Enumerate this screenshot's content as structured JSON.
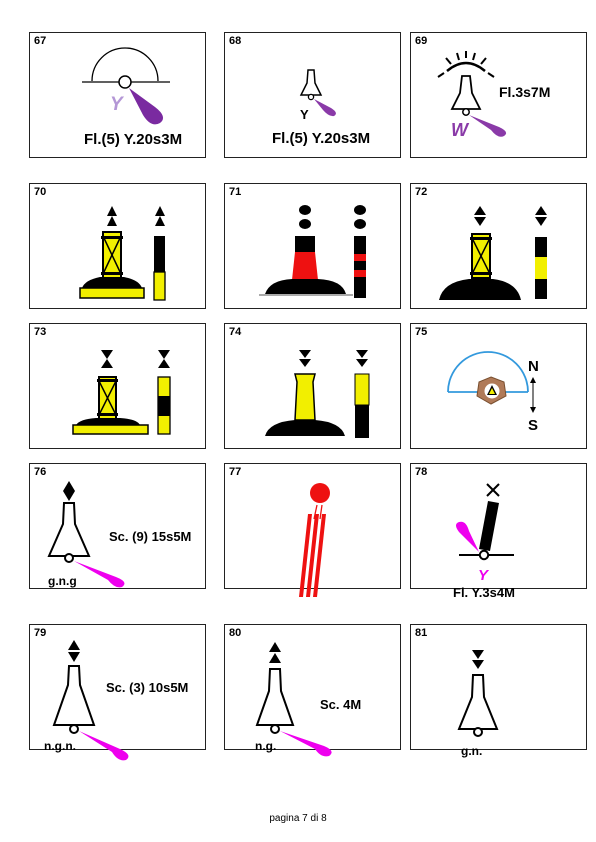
{
  "cards": [
    {
      "number": "67",
      "color_letter": "Y",
      "label": "Fl.(5) Y.20s3M"
    },
    {
      "number": "68",
      "color_letter": "Y",
      "label": "Fl.(5) Y.20s3M"
    },
    {
      "number": "69",
      "color_letter": "W",
      "label": "Fl.3s7M"
    },
    {
      "number": "70"
    },
    {
      "number": "71"
    },
    {
      "number": "72"
    },
    {
      "number": "73"
    },
    {
      "number": "74"
    },
    {
      "number": "75",
      "north": "N",
      "south": "S"
    },
    {
      "number": "76",
      "label": "Sc. (9) 15s5M",
      "colors": "g.n.g"
    },
    {
      "number": "77"
    },
    {
      "number": "78",
      "color_letter": "Y",
      "label": "Fl. Y.3s4M"
    },
    {
      "number": "79",
      "label": "Sc. (3) 10s5M",
      "colors": "n.g.n."
    },
    {
      "number": "80",
      "label": "Sc. 4M",
      "colors": "n.g."
    },
    {
      "number": "81",
      "colors": "g.n."
    }
  ],
  "footer": "pagina 7 di 8",
  "colors": {
    "yellow": "#f2ef00",
    "black": "#000000",
    "red": "#ee1111",
    "magenta": "#ee00ee",
    "purple": "#8a3aa8",
    "blue": "#3399dd",
    "brown": "#b07a58"
  }
}
